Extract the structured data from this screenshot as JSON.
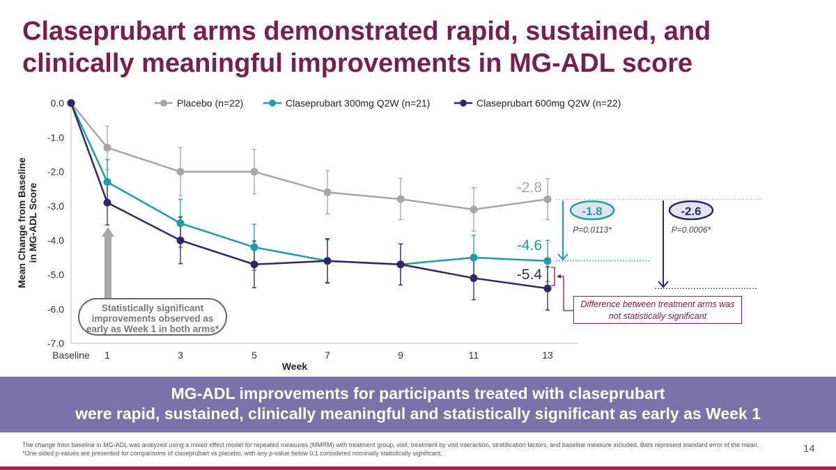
{
  "title": "Claseprubart arms demonstrated rapid, sustained, and clinically meaningful improvements in MG-ADL score",
  "chart_data": {
    "type": "line",
    "xlabel": "Week",
    "ylabel_line1": "Mean Change from Baseline",
    "ylabel_line2": "in MG-ADL Score",
    "categories": [
      "Baseline",
      "1",
      "3",
      "5",
      "7",
      "9",
      "11",
      "13"
    ],
    "ylim": [
      -7.0,
      0.0
    ],
    "yticks": [
      "0.0",
      "-1.0",
      "-2.0",
      "-3.0",
      "-4.0",
      "-5.0",
      "-6.0",
      "-7.0"
    ],
    "legend_position": "top",
    "grid": false,
    "series": [
      {
        "name": "Placebo (n=22)",
        "color": "#a6a6a6",
        "values": [
          0,
          -1.3,
          -2.0,
          -2.0,
          -2.6,
          -2.8,
          -3.1,
          -2.8
        ],
        "se": [
          0,
          0.63,
          0.7,
          0.65,
          0.63,
          0.6,
          0.63,
          0.6
        ]
      },
      {
        "name": "Claseprubart 300mg Q2W (n=21)",
        "color": "#17a2a8",
        "values": [
          0,
          -2.3,
          -3.5,
          -4.2,
          -4.6,
          -4.7,
          -4.5,
          -4.6
        ],
        "se": [
          0,
          0.65,
          0.7,
          0.67,
          0.62,
          0.6,
          0.65,
          0.6
        ]
      },
      {
        "name": "Claseprubart 600mg Q2W (n=22)",
        "color": "#2e2766",
        "values": [
          0,
          -2.9,
          -4.0,
          -4.7,
          -4.6,
          -4.7,
          -5.1,
          -5.4
        ],
        "se": [
          0,
          0.65,
          0.68,
          0.68,
          0.65,
          0.6,
          0.63,
          0.63
        ]
      }
    ],
    "end_labels": [
      "-2.8",
      "-4.6",
      "-5.4"
    ],
    "differences": [
      {
        "value": "-1.8",
        "p": "P=0.0113*",
        "color": "#17a2a8"
      },
      {
        "value": "-2.6",
        "p": "P=0.0006*",
        "color": "#2e2766"
      }
    ],
    "callout": "Statistically significant improvements observed as early as Week 1 in both arms*",
    "note": "Difference between treatment arms was not statistically significant"
  },
  "banner": {
    "line1": "MG-ADL improvements for participants treated with claseprubart",
    "line2": "were rapid, sustained, clinically meaningful and statistically significant as early as Week 1"
  },
  "footnote1": "The change from baseline in MG-ADL was analyzed using a mixed effect model for repeated measures (MMRM) with treatment group, visit, treatment by visit interaction, stratification factors, and baseline measure included. Bars represent standard error of the mean.",
  "footnote2": "*One-sided p-values are presented for comparisons of claseprubart vs placebo, with any p-value below 0.1 considered nominally statistically significant.",
  "page_number": "14"
}
